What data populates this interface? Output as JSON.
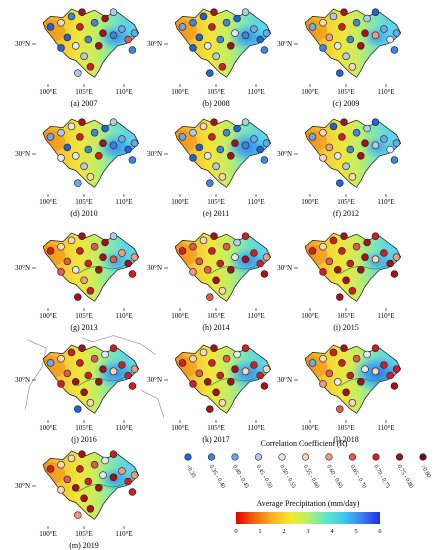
{
  "panels": [
    {
      "id": "a",
      "caption": "(a) 2007",
      "dots": [
        0,
        5,
        1,
        9,
        0,
        8,
        1,
        9,
        3,
        9,
        1,
        2,
        7,
        2,
        0,
        4,
        1,
        9,
        3,
        8,
        3,
        1
      ],
      "rivers": false,
      "blueArea": 0.55
    },
    {
      "id": "b",
      "caption": "(b) 2008",
      "dots": [
        2,
        1,
        0,
        9,
        0,
        8,
        1,
        0,
        3,
        4,
        1,
        2,
        0,
        2,
        0,
        4,
        1,
        9,
        3,
        8,
        0,
        1
      ],
      "rivers": false,
      "blueArea": 0.6
    },
    {
      "id": "c",
      "caption": "(c) 2009",
      "dots": [
        2,
        5,
        3,
        9,
        6,
        8,
        1,
        3,
        0,
        9,
        6,
        2,
        4,
        2,
        1,
        4,
        1,
        9,
        3,
        5,
        0,
        1
      ],
      "rivers": false,
      "blueArea": 0.35
    },
    {
      "id": "d",
      "caption": "(d) 2010",
      "dots": [
        2,
        3,
        4,
        9,
        0,
        8,
        1,
        0,
        3,
        9,
        1,
        2,
        0,
        2,
        4,
        4,
        1,
        8,
        3,
        5,
        2,
        1
      ],
      "rivers": false,
      "blueArea": 0.6
    },
    {
      "id": "e",
      "caption": "(e) 2011",
      "dots": [
        2,
        3,
        5,
        9,
        0,
        8,
        1,
        0,
        3,
        9,
        1,
        2,
        0,
        2,
        0,
        4,
        1,
        9,
        3,
        5,
        1,
        1
      ],
      "rivers": false,
      "blueArea": 0.75
    },
    {
      "id": "f",
      "caption": "(f) 2012",
      "dots": [
        2,
        5,
        0,
        9,
        6,
        8,
        1,
        3,
        0,
        9,
        3,
        2,
        4,
        2,
        5,
        4,
        1,
        9,
        3,
        5,
        0,
        1
      ],
      "rivers": false,
      "blueArea": 0.3
    },
    {
      "id": "g",
      "caption": "(g) 2013",
      "dots": [
        8,
        5,
        5,
        9,
        7,
        8,
        7,
        9,
        3,
        9,
        7,
        6,
        9,
        6,
        7,
        4,
        8,
        9,
        6,
        8,
        9,
        8
      ],
      "rivers": true,
      "blueArea": 0.3
    },
    {
      "id": "h",
      "caption": "(h) 2014",
      "dots": [
        8,
        7,
        5,
        9,
        7,
        8,
        7,
        3,
        8,
        4,
        9,
        8,
        8,
        6,
        6,
        7,
        8,
        9,
        9,
        5,
        7,
        9
      ],
      "rivers": true,
      "blueArea": 0.6
    },
    {
      "id": "i",
      "caption": "(i) 2015",
      "dots": [
        8,
        5,
        8,
        9,
        7,
        8,
        7,
        9,
        8,
        9,
        5,
        8,
        9,
        6,
        8,
        9,
        8,
        9,
        9,
        8,
        9,
        9
      ],
      "rivers": true,
      "blueArea": 0.35
    },
    {
      "id": "j",
      "caption": "(j) 2016",
      "dots": [
        2,
        5,
        8,
        9,
        7,
        8,
        7,
        4,
        8,
        9,
        5,
        8,
        8,
        6,
        8,
        9,
        8,
        9,
        9,
        5,
        0,
        8
      ],
      "rivers": true,
      "blueArea": 0.7,
      "borders": true
    },
    {
      "id": "k",
      "caption": "(k) 2017",
      "dots": [
        8,
        5,
        5,
        9,
        7,
        8,
        7,
        4,
        8,
        9,
        5,
        8,
        8,
        5,
        8,
        9,
        8,
        9,
        9,
        5,
        9,
        9
      ],
      "rivers": true,
      "blueArea": 0.65
    },
    {
      "id": "l",
      "caption": "(l) 2018",
      "dots": [
        2,
        5,
        8,
        9,
        7,
        8,
        7,
        4,
        8,
        4,
        5,
        8,
        8,
        8,
        6,
        4,
        8,
        9,
        9,
        5,
        7,
        9
      ],
      "rivers": true,
      "blueArea": 1.0
    },
    {
      "id": "m",
      "caption": "(m) 2019",
      "dots": [
        8,
        5,
        5,
        9,
        7,
        8,
        7,
        4,
        8,
        4,
        9,
        6,
        8,
        6,
        5,
        9,
        8,
        9,
        9,
        9,
        6,
        8
      ],
      "rivers": true,
      "blueArea": 0.45
    }
  ],
  "axes": {
    "lat": "30°N",
    "lon": [
      "100°E",
      "105°E",
      "110°E"
    ]
  },
  "legend": {
    "corr_title": "Correlation Coefficient (R)",
    "classes": [
      {
        "label": "<0.35",
        "color": "#1f63d6"
      },
      {
        "label": "0.35 - 0.40",
        "color": "#3a86e0"
      },
      {
        "label": "0.40 - 0.45",
        "color": "#69a9ea"
      },
      {
        "label": "0.45 - 0.50",
        "color": "#a9cdf0"
      },
      {
        "label": "0.50 - 0.55",
        "color": "#e3e7f2"
      },
      {
        "label": "0.55 - 0.60",
        "color": "#f6d9b4"
      },
      {
        "label": "0.60 - 0.65",
        "color": "#ef9b7c"
      },
      {
        "label": "0.65 - 0.70",
        "color": "#e4584f"
      },
      {
        "label": "0.70 - 0.75",
        "color": "#cf1f23"
      },
      {
        "label": "0.75 - 0.80",
        "color": "#a3121b"
      },
      {
        "label": ">0.80",
        "color": "#6e0a12"
      }
    ],
    "precip_title": "Average Precipitation (mm/day)",
    "precip_ticks": [
      "0",
      "1",
      "2",
      "3",
      "4",
      "5",
      "6"
    ]
  }
}
